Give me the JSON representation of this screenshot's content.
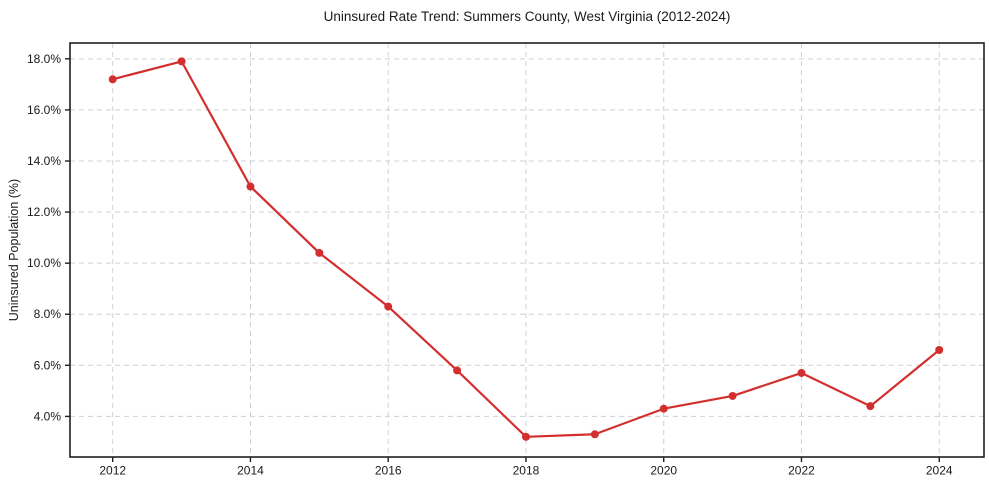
{
  "chart_data": {
    "type": "line",
    "title": "Uninsured Rate Trend: Summers County, West Virginia (2012-2024)",
    "xlabel": "",
    "ylabel": "Uninsured Population (%)",
    "x": [
      2012,
      2013,
      2014,
      2015,
      2016,
      2017,
      2018,
      2019,
      2020,
      2021,
      2022,
      2023,
      2024
    ],
    "series": [
      {
        "name": "Uninsured Population (%)",
        "color": "#d32f2f",
        "values": [
          17.2,
          17.9,
          13.0,
          10.4,
          8.3,
          5.8,
          3.2,
          3.3,
          4.3,
          4.8,
          5.7,
          4.4,
          6.6
        ]
      }
    ],
    "xticks": [
      2012,
      2014,
      2016,
      2018,
      2020,
      2022,
      2024
    ],
    "xtick_labels": [
      "2012",
      "2014",
      "2016",
      "2018",
      "2020",
      "2022",
      "2024"
    ],
    "yticks": [
      4,
      6,
      8,
      10,
      12,
      14,
      16,
      18
    ],
    "ytick_labels": [
      "4.0%",
      "6.0%",
      "8.0%",
      "10.0%",
      "12.0%",
      "14.0%",
      "16.0%",
      "18.0%"
    ],
    "xlim": [
      2011.38,
      2024.65
    ],
    "ylim": [
      2.41,
      18.62
    ],
    "grid": true,
    "grid_style": "dashed",
    "legend": false,
    "marker": "circle"
  },
  "colors": {
    "line": "#d32f2f",
    "grid": "#d0d0d0",
    "spine": "#1f1f1f",
    "text": "#1a1a1a",
    "background": "#ffffff"
  }
}
